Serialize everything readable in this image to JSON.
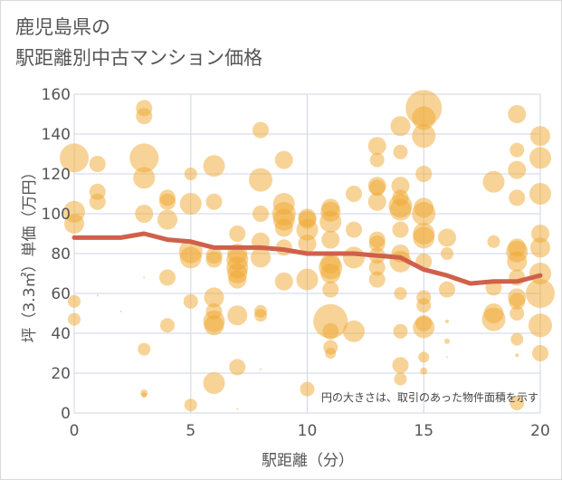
{
  "chart_data": {
    "type": "scatter",
    "title_lines": [
      "鹿児島県の",
      "駅距離別中古マンション価格"
    ],
    "xlabel": "駅距離（分）",
    "ylabel": "坪（3.3㎡）単価（万円）",
    "xlim": [
      0,
      20
    ],
    "ylim": [
      0,
      160
    ],
    "xticks": [
      0,
      5,
      10,
      15,
      20
    ],
    "yticks": [
      0,
      20,
      40,
      60,
      80,
      100,
      120,
      140,
      160
    ],
    "grid": true,
    "annotation": "円の大きさは、取引のあった物件面積を示す",
    "colors": {
      "bubble": "#f0a830",
      "line": "#d0604a",
      "grid": "#cfd6e4",
      "text": "#555555"
    },
    "series": [
      {
        "kind": "bubble",
        "points": [
          {
            "x": 0,
            "y": 128,
            "s": 16
          },
          {
            "x": 0,
            "y": 101,
            "s": 12
          },
          {
            "x": 0,
            "y": 95,
            "s": 11
          },
          {
            "x": 0,
            "y": 56,
            "s": 7
          },
          {
            "x": 0,
            "y": 47,
            "s": 7
          },
          {
            "x": 1,
            "y": 125,
            "s": 9
          },
          {
            "x": 1,
            "y": 111,
            "s": 9
          },
          {
            "x": 1,
            "y": 106,
            "s": 9
          },
          {
            "x": 1,
            "y": 59,
            "s": 1
          },
          {
            "x": 2,
            "y": 51,
            "s": 1
          },
          {
            "x": 3,
            "y": 153,
            "s": 9
          },
          {
            "x": 3,
            "y": 149,
            "s": 9
          },
          {
            "x": 3,
            "y": 128,
            "s": 16
          },
          {
            "x": 3,
            "y": 118,
            "s": 12
          },
          {
            "x": 3,
            "y": 100,
            "s": 10
          },
          {
            "x": 3,
            "y": 32,
            "s": 7
          },
          {
            "x": 3,
            "y": 10,
            "s": 4
          },
          {
            "x": 3,
            "y": 9,
            "s": 3
          },
          {
            "x": 3,
            "y": 68,
            "s": 1
          },
          {
            "x": 4,
            "y": 108,
            "s": 9
          },
          {
            "x": 4,
            "y": 106,
            "s": 9
          },
          {
            "x": 4,
            "y": 97,
            "s": 11
          },
          {
            "x": 4,
            "y": 68,
            "s": 9
          },
          {
            "x": 4,
            "y": 44,
            "s": 8
          },
          {
            "x": 5,
            "y": 120,
            "s": 7
          },
          {
            "x": 5,
            "y": 105,
            "s": 12
          },
          {
            "x": 5,
            "y": 81,
            "s": 13
          },
          {
            "x": 5,
            "y": 78,
            "s": 12
          },
          {
            "x": 5,
            "y": 56,
            "s": 8
          },
          {
            "x": 5,
            "y": 4,
            "s": 7
          },
          {
            "x": 6,
            "y": 124,
            "s": 12
          },
          {
            "x": 6,
            "y": 106,
            "s": 9
          },
          {
            "x": 6,
            "y": 79,
            "s": 9
          },
          {
            "x": 6,
            "y": 77,
            "s": 9
          },
          {
            "x": 6,
            "y": 58,
            "s": 11
          },
          {
            "x": 6,
            "y": 51,
            "s": 9
          },
          {
            "x": 6,
            "y": 46,
            "s": 12
          },
          {
            "x": 6,
            "y": 44,
            "s": 11
          },
          {
            "x": 6,
            "y": 15,
            "s": 12
          },
          {
            "x": 7,
            "y": 90,
            "s": 9
          },
          {
            "x": 7,
            "y": 80,
            "s": 11
          },
          {
            "x": 7,
            "y": 77,
            "s": 12
          },
          {
            "x": 7,
            "y": 73,
            "s": 12
          },
          {
            "x": 7,
            "y": 70,
            "s": 11
          },
          {
            "x": 7,
            "y": 67,
            "s": 10
          },
          {
            "x": 7,
            "y": 49,
            "s": 11
          },
          {
            "x": 7,
            "y": 23,
            "s": 9
          },
          {
            "x": 7,
            "y": 2,
            "s": 1
          },
          {
            "x": 8,
            "y": 142,
            "s": 9
          },
          {
            "x": 8,
            "y": 117,
            "s": 13
          },
          {
            "x": 8,
            "y": 100,
            "s": 9
          },
          {
            "x": 8,
            "y": 86,
            "s": 10
          },
          {
            "x": 8,
            "y": 78,
            "s": 11
          },
          {
            "x": 8,
            "y": 51,
            "s": 7
          },
          {
            "x": 8,
            "y": 49,
            "s": 7
          },
          {
            "x": 8,
            "y": 22,
            "s": 1
          },
          {
            "x": 9,
            "y": 127,
            "s": 10
          },
          {
            "x": 9,
            "y": 105,
            "s": 12
          },
          {
            "x": 9,
            "y": 100,
            "s": 13
          },
          {
            "x": 9,
            "y": 97,
            "s": 12
          },
          {
            "x": 9,
            "y": 93,
            "s": 10
          },
          {
            "x": 9,
            "y": 83,
            "s": 9
          },
          {
            "x": 9,
            "y": 66,
            "s": 10
          },
          {
            "x": 10,
            "y": 98,
            "s": 10
          },
          {
            "x": 10,
            "y": 97,
            "s": 10
          },
          {
            "x": 10,
            "y": 92,
            "s": 12
          },
          {
            "x": 10,
            "y": 85,
            "s": 10
          },
          {
            "x": 10,
            "y": 67,
            "s": 12
          },
          {
            "x": 10,
            "y": 12,
            "s": 8
          },
          {
            "x": 11,
            "y": 103,
            "s": 10
          },
          {
            "x": 11,
            "y": 101,
            "s": 11
          },
          {
            "x": 11,
            "y": 96,
            "s": 12
          },
          {
            "x": 11,
            "y": 87,
            "s": 10
          },
          {
            "x": 11,
            "y": 75,
            "s": 11
          },
          {
            "x": 11,
            "y": 73,
            "s": 13
          },
          {
            "x": 11,
            "y": 70,
            "s": 11
          },
          {
            "x": 11,
            "y": 62,
            "s": 9
          },
          {
            "x": 11,
            "y": 46,
            "s": 19
          },
          {
            "x": 11,
            "y": 41,
            "s": 9
          },
          {
            "x": 11,
            "y": 33,
            "s": 8
          },
          {
            "x": 11,
            "y": 30,
            "s": 6
          },
          {
            "x": 12,
            "y": 110,
            "s": 9
          },
          {
            "x": 12,
            "y": 92,
            "s": 9
          },
          {
            "x": 12,
            "y": 78,
            "s": 12
          },
          {
            "x": 12,
            "y": 41,
            "s": 12
          },
          {
            "x": 13,
            "y": 134,
            "s": 10
          },
          {
            "x": 13,
            "y": 127,
            "s": 8
          },
          {
            "x": 13,
            "y": 114,
            "s": 10
          },
          {
            "x": 13,
            "y": 113,
            "s": 9
          },
          {
            "x": 13,
            "y": 106,
            "s": 10
          },
          {
            "x": 13,
            "y": 87,
            "s": 9
          },
          {
            "x": 13,
            "y": 85,
            "s": 9
          },
          {
            "x": 13,
            "y": 79,
            "s": 9
          },
          {
            "x": 13,
            "y": 73,
            "s": 9
          },
          {
            "x": 13,
            "y": 67,
            "s": 9
          },
          {
            "x": 14,
            "y": 144,
            "s": 11
          },
          {
            "x": 14,
            "y": 131,
            "s": 8
          },
          {
            "x": 14,
            "y": 114,
            "s": 10
          },
          {
            "x": 14,
            "y": 108,
            "s": 9
          },
          {
            "x": 14,
            "y": 104,
            "s": 13
          },
          {
            "x": 14,
            "y": 102,
            "s": 12
          },
          {
            "x": 14,
            "y": 92,
            "s": 9
          },
          {
            "x": 14,
            "y": 80,
            "s": 10
          },
          {
            "x": 14,
            "y": 76,
            "s": 12
          },
          {
            "x": 14,
            "y": 60,
            "s": 7
          },
          {
            "x": 14,
            "y": 41,
            "s": 8
          },
          {
            "x": 14,
            "y": 24,
            "s": 9
          },
          {
            "x": 14,
            "y": 17,
            "s": 7
          },
          {
            "x": 15,
            "y": 153,
            "s": 20
          },
          {
            "x": 15,
            "y": 148,
            "s": 13
          },
          {
            "x": 15,
            "y": 139,
            "s": 13
          },
          {
            "x": 15,
            "y": 120,
            "s": 9
          },
          {
            "x": 15,
            "y": 103,
            "s": 11
          },
          {
            "x": 15,
            "y": 100,
            "s": 13
          },
          {
            "x": 15,
            "y": 90,
            "s": 12
          },
          {
            "x": 15,
            "y": 88,
            "s": 12
          },
          {
            "x": 15,
            "y": 76,
            "s": 9
          },
          {
            "x": 15,
            "y": 58,
            "s": 8
          },
          {
            "x": 15,
            "y": 54,
            "s": 8
          },
          {
            "x": 15,
            "y": 45,
            "s": 9
          },
          {
            "x": 15,
            "y": 43,
            "s": 12
          },
          {
            "x": 15,
            "y": 28,
            "s": 6
          },
          {
            "x": 15,
            "y": 21,
            "s": 4
          },
          {
            "x": 16,
            "y": 88,
            "s": 10
          },
          {
            "x": 16,
            "y": 80,
            "s": 7
          },
          {
            "x": 16,
            "y": 62,
            "s": 9
          },
          {
            "x": 16,
            "y": 46,
            "s": 2
          },
          {
            "x": 16,
            "y": 36,
            "s": 3
          },
          {
            "x": 16,
            "y": 28,
            "s": 1
          },
          {
            "x": 18,
            "y": 116,
            "s": 12
          },
          {
            "x": 18,
            "y": 86,
            "s": 7
          },
          {
            "x": 18,
            "y": 63,
            "s": 9
          },
          {
            "x": 18,
            "y": 50,
            "s": 11
          },
          {
            "x": 18,
            "y": 47,
            "s": 13
          },
          {
            "x": 19,
            "y": 150,
            "s": 10
          },
          {
            "x": 19,
            "y": 132,
            "s": 8
          },
          {
            "x": 19,
            "y": 122,
            "s": 10
          },
          {
            "x": 19,
            "y": 108,
            "s": 9
          },
          {
            "x": 19,
            "y": 83,
            "s": 10
          },
          {
            "x": 19,
            "y": 81,
            "s": 12
          },
          {
            "x": 19,
            "y": 76,
            "s": 11
          },
          {
            "x": 19,
            "y": 68,
            "s": 9
          },
          {
            "x": 19,
            "y": 58,
            "s": 10
          },
          {
            "x": 19,
            "y": 56,
            "s": 9
          },
          {
            "x": 19,
            "y": 50,
            "s": 8
          },
          {
            "x": 19,
            "y": 37,
            "s": 7
          },
          {
            "x": 19,
            "y": 29,
            "s": 2
          },
          {
            "x": 19,
            "y": 5,
            "s": 8
          },
          {
            "x": 20,
            "y": 139,
            "s": 11
          },
          {
            "x": 20,
            "y": 128,
            "s": 12
          },
          {
            "x": 20,
            "y": 110,
            "s": 12
          },
          {
            "x": 20,
            "y": 90,
            "s": 10
          },
          {
            "x": 20,
            "y": 83,
            "s": 11
          },
          {
            "x": 20,
            "y": 70,
            "s": 12
          },
          {
            "x": 20,
            "y": 60,
            "s": 16
          },
          {
            "x": 20,
            "y": 44,
            "s": 13
          },
          {
            "x": 20,
            "y": 30,
            "s": 9
          }
        ]
      },
      {
        "kind": "line",
        "x": [
          0,
          1,
          2,
          3,
          4,
          5,
          6,
          7,
          8,
          9,
          10,
          11,
          12,
          13,
          14,
          15,
          16,
          17,
          18,
          19,
          20
        ],
        "y": [
          88,
          88,
          88,
          90,
          87,
          86,
          83,
          83,
          83,
          82,
          80,
          80,
          80,
          79,
          78,
          72,
          69,
          65,
          66,
          66,
          69
        ]
      }
    ]
  }
}
